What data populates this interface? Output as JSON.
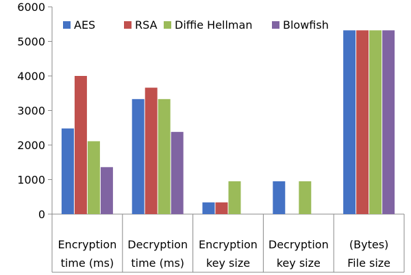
{
  "chart_data": {
    "type": "bar",
    "categories": [
      [
        "Encryption",
        "time (ms)"
      ],
      [
        "Decryption",
        "time (ms)"
      ],
      [
        "Encryption",
        "key size"
      ],
      [
        "Decryption",
        "key size"
      ],
      [
        "(Bytes)",
        "File size"
      ]
    ],
    "series": [
      {
        "name": "AES",
        "color": "#4472C4",
        "values": [
          2480,
          3330,
          340,
          950,
          5320
        ]
      },
      {
        "name": "RSA",
        "color": "#C0504D",
        "values": [
          4000,
          3660,
          340,
          null,
          5320
        ]
      },
      {
        "name": "Diffie Hellman",
        "color": "#9BBB59",
        "values": [
          2110,
          3330,
          950,
          950,
          5320
        ]
      },
      {
        "name": "Blowfish",
        "color": "#8064A2",
        "values": [
          1360,
          2380,
          null,
          null,
          5320
        ]
      }
    ],
    "ylim": [
      0,
      6000
    ],
    "yticks": [
      0,
      1000,
      2000,
      3000,
      4000,
      5000,
      6000
    ],
    "grid": false,
    "legend_position": "top-left inside"
  }
}
